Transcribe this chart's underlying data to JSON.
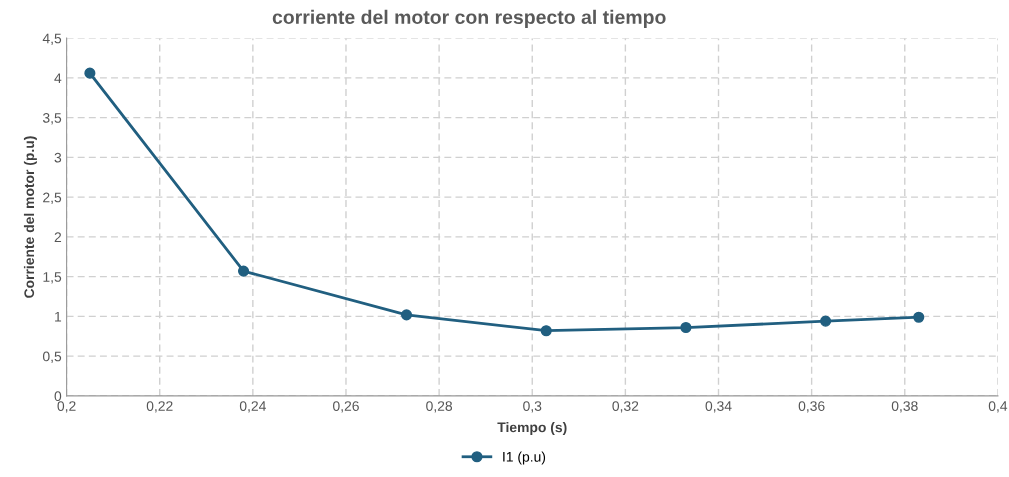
{
  "chart_data": {
    "type": "line",
    "title": "corriente del motor con respecto al tiempo",
    "xlabel": "Tiempo (s)",
    "ylabel": "Corriente del motor (p.u)",
    "x": [
      0.205,
      0.238,
      0.273,
      0.303,
      0.333,
      0.363,
      0.383
    ],
    "series": [
      {
        "name": "I1 (p.u)",
        "color": "#215f80",
        "values": [
          4.06,
          1.57,
          1.02,
          0.82,
          0.86,
          0.94,
          0.99
        ]
      }
    ],
    "xlim": [
      0.2,
      0.4
    ],
    "xticks": [
      {
        "value": 0.2,
        "label": "0,2"
      },
      {
        "value": 0.22,
        "label": "0,22"
      },
      {
        "value": 0.24,
        "label": "0,24"
      },
      {
        "value": 0.26,
        "label": "0,26"
      },
      {
        "value": 0.28,
        "label": "0,28"
      },
      {
        "value": 0.3,
        "label": "0,3"
      },
      {
        "value": 0.32,
        "label": "0,32"
      },
      {
        "value": 0.34,
        "label": "0,34"
      },
      {
        "value": 0.36,
        "label": "0,36"
      },
      {
        "value": 0.38,
        "label": "0,38"
      },
      {
        "value": 0.4,
        "label": "0,4"
      }
    ],
    "ylim": [
      0,
      4.5
    ],
    "yticks": [
      0,
      {
        "value": 0.5,
        "label": "0,5"
      },
      1,
      {
        "value": 1.5,
        "label": "1,5"
      },
      2,
      {
        "value": 2.5,
        "label": "2,5"
      },
      3,
      {
        "value": 3.5,
        "label": "3,5"
      },
      4,
      {
        "value": 4.5,
        "label": "4,5"
      }
    ],
    "grid": true,
    "legend": "bottom",
    "marker": "circle",
    "line_style": "solid"
  }
}
